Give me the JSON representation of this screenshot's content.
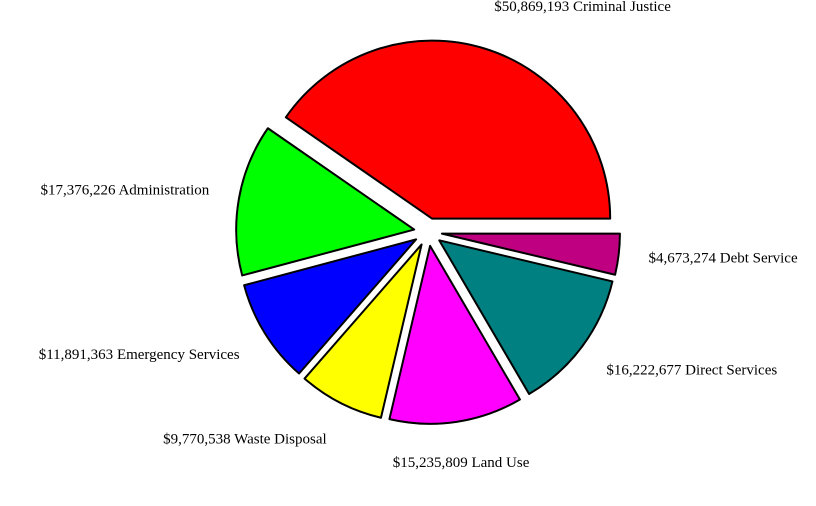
{
  "chart_data": {
    "type": "pie",
    "categories": [
      "Criminal Justice",
      "Administration",
      "Emergency Services",
      "Waste Disposal",
      "Land Use",
      "Direct Services",
      "Debt Service"
    ],
    "values": [
      50869193,
      17376226,
      11891363,
      9770538,
      15235809,
      16222677,
      4673274
    ],
    "value_labels": [
      "$50,869,193",
      "$17,376,226",
      "$11,891,363",
      "$9,770,538",
      "$15,235,809",
      "$16,222,677",
      "$4,673,274"
    ],
    "colors": [
      "#ff0000",
      "#00ff00",
      "#0000ff",
      "#ffff00",
      "#ff00ff",
      "#008080",
      "#bf0080"
    ]
  }
}
